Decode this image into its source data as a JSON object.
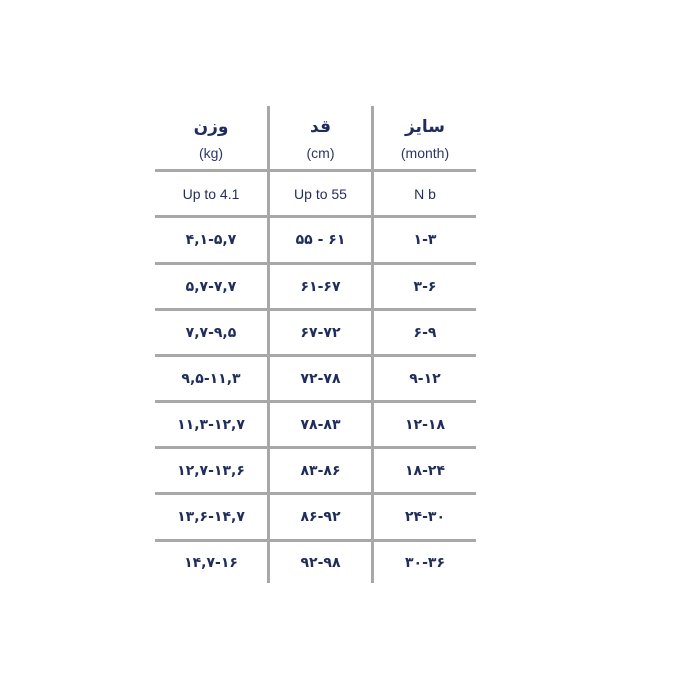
{
  "colors": {
    "text": "#1f2d5c",
    "grid": "#a8a8a8"
  },
  "headers": [
    {
      "title": "وزن",
      "unit": "(kg)"
    },
    {
      "title": "قد",
      "unit": "(cm)"
    },
    {
      "title": "سایز",
      "unit": "(month)"
    }
  ],
  "rows": [
    [
      "Up to 4.1",
      "Up to 55",
      "N b"
    ],
    [
      "۴,۱-۵,۷",
      "۵۵ - ۶۱",
      "۱-۳"
    ],
    [
      "۵,۷-۷,۷",
      "۶۱-۶۷",
      "۳-۶"
    ],
    [
      "۷,۷-۹,۵",
      "۶۷-۷۲",
      "۶-۹"
    ],
    [
      "۹,۵-۱۱,۳",
      "۷۲-۷۸",
      "۹-۱۲"
    ],
    [
      "۱۱,۳-۱۲,۷",
      "۷۸-۸۳",
      "۱۲-۱۸"
    ],
    [
      "۱۲,۷-۱۳,۶",
      "۸۳-۸۶",
      "۱۸-۲۴"
    ],
    [
      "۱۳,۶-۱۴,۷",
      "۸۶-۹۲",
      "۲۴-۳۰"
    ],
    [
      "۱۴,۷-۱۶",
      "۹۲-۹۸",
      "۳۰-۳۶"
    ]
  ]
}
